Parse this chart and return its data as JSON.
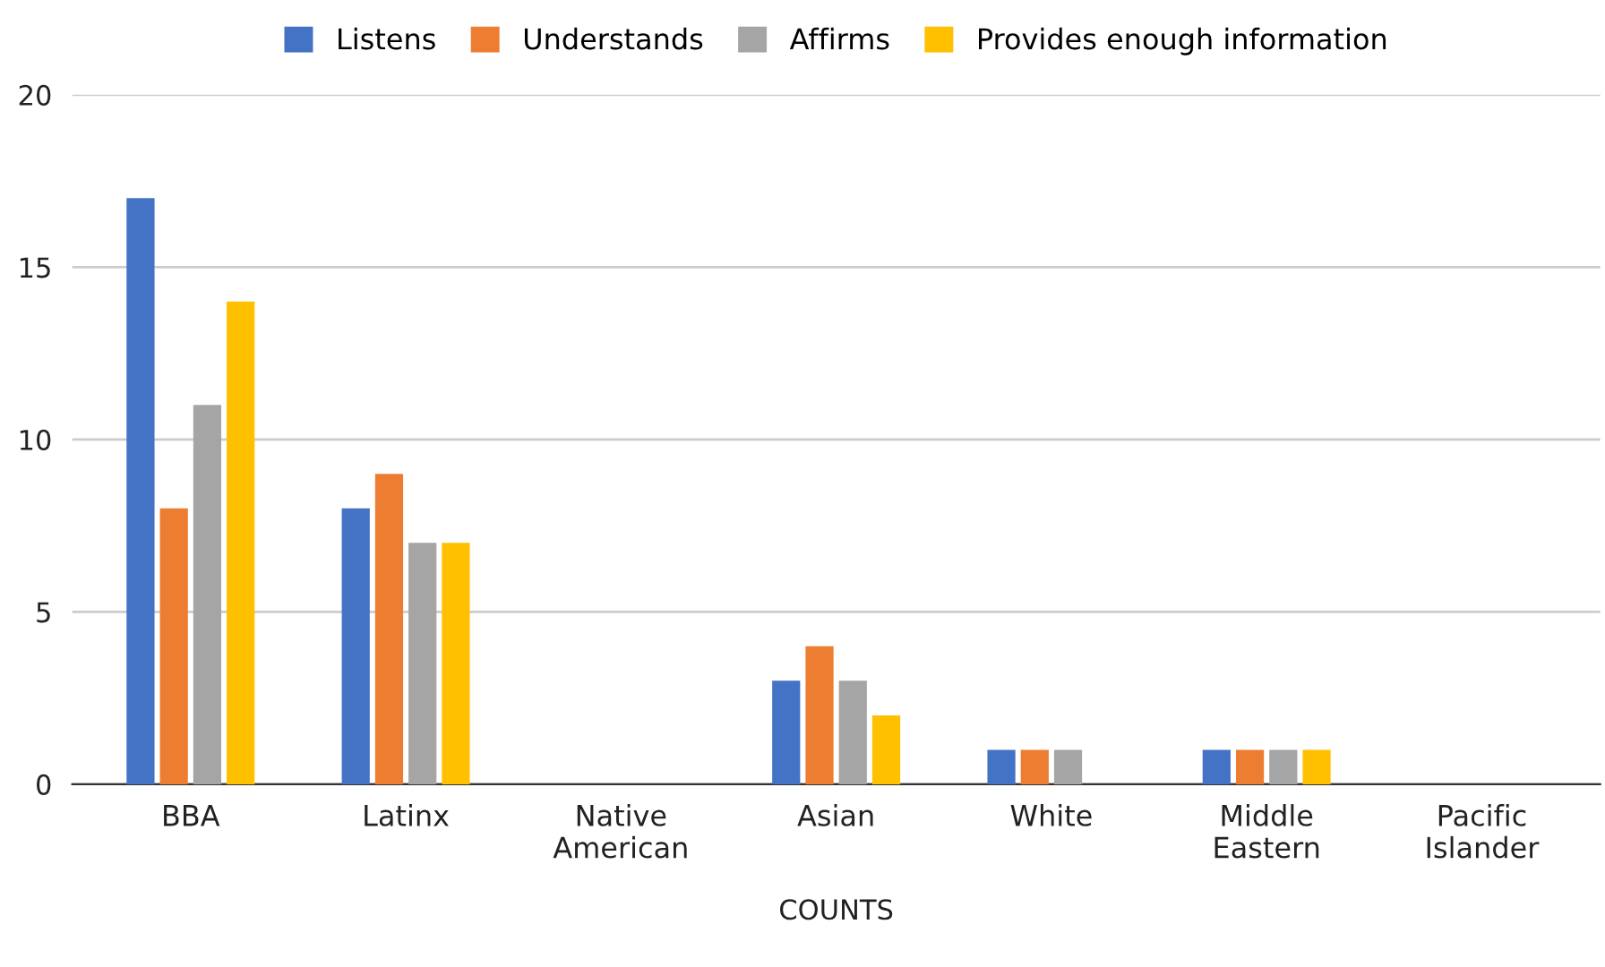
{
  "chart_data": {
    "type": "bar",
    "xlabel": "COUNTS",
    "categories": [
      "BBA",
      "Latinx",
      "Native American",
      "Asian",
      "White",
      "Middle Eastern",
      "Pacific Islander"
    ],
    "series": [
      {
        "name": "Listens",
        "color": "#4472c4",
        "values": [
          17,
          8,
          0,
          3,
          1,
          1,
          0
        ]
      },
      {
        "name": "Understands",
        "color": "#ed7d31",
        "values": [
          8,
          9,
          0,
          4,
          1,
          1,
          0
        ]
      },
      {
        "name": "Affirms",
        "color": "#a5a5a5",
        "values": [
          11,
          7,
          0,
          3,
          1,
          1,
          0
        ]
      },
      {
        "name": "Provides enough information",
        "color": "#ffc000",
        "values": [
          14,
          7,
          0,
          2,
          0,
          1,
          0
        ]
      }
    ],
    "ylim": [
      0,
      20
    ],
    "yticks": [
      0,
      5,
      10,
      15,
      20
    ],
    "grid": "y",
    "legend": "top"
  }
}
